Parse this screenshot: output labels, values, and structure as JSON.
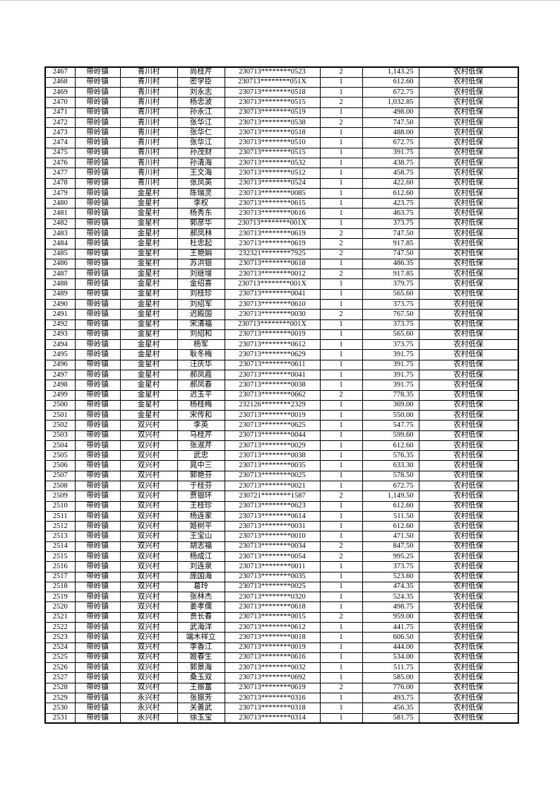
{
  "table": {
    "column_semantics": [
      "seq",
      "town",
      "village",
      "name",
      "id-number",
      "count",
      "amount",
      "category"
    ],
    "rows": [
      [
        "2467",
        "带岭镇",
        "青川村",
        "尚桂芹",
        "230713********0523",
        "2",
        "1,143.25",
        "农村低保"
      ],
      [
        "2468",
        "带岭镇",
        "青川村",
        "密学臣",
        "230713********051X",
        "1",
        "612.60",
        "农村低保"
      ],
      [
        "2469",
        "带岭镇",
        "青川村",
        "刘永志",
        "230713********0518",
        "1",
        "672.75",
        "农村低保"
      ],
      [
        "2470",
        "带岭镇",
        "青川村",
        "杨忠波",
        "230713********0515",
        "2",
        "1,032.85",
        "农村低保"
      ],
      [
        "2471",
        "带岭镇",
        "青川村",
        "孙永江",
        "230713********0519",
        "1",
        "498.00",
        "农村低保"
      ],
      [
        "2472",
        "带岭镇",
        "青川村",
        "张华江",
        "230713********0538",
        "2",
        "747.50",
        "农村低保"
      ],
      [
        "2473",
        "带岭镇",
        "青川村",
        "张华仁",
        "230713********0518",
        "1",
        "488.00",
        "农村低保"
      ],
      [
        "2474",
        "带岭镇",
        "青川村",
        "张华江",
        "230713********0510",
        "1",
        "672.75",
        "农村低保"
      ],
      [
        "2475",
        "带岭镇",
        "青川村",
        "孙茂财",
        "230713********0515",
        "1",
        "391.75",
        "农村低保"
      ],
      [
        "2476",
        "带岭镇",
        "青川村",
        "孙清海",
        "230713********0532",
        "1",
        "438.75",
        "农村低保"
      ],
      [
        "2477",
        "带岭镇",
        "青川村",
        "王文海",
        "230713********0512",
        "1",
        "458.75",
        "农村低保"
      ],
      [
        "2478",
        "带岭镇",
        "青川村",
        "张凤英",
        "230713********0524",
        "1",
        "422.60",
        "农村低保"
      ],
      [
        "2479",
        "带岭镇",
        "金星村",
        "陈瑞灵",
        "230713********0085",
        "1",
        "612.60",
        "农村低保"
      ],
      [
        "2480",
        "带岭镇",
        "金星村",
        "李权",
        "230713********0615",
        "1",
        "423.75",
        "农村低保"
      ],
      [
        "2481",
        "带岭镇",
        "金星村",
        "杨秀东",
        "230713********0616",
        "1",
        "463.75",
        "农村低保"
      ],
      [
        "2482",
        "带岭镇",
        "金星村",
        "郭彦华",
        "230713********001X",
        "1",
        "373.75",
        "农村低保"
      ],
      [
        "2483",
        "带岭镇",
        "金星村",
        "郝凤林",
        "230713********0619",
        "2",
        "747.50",
        "农村低保"
      ],
      [
        "2484",
        "带岭镇",
        "金星村",
        "杜忠起",
        "230713********0619",
        "2",
        "917.85",
        "农村低保"
      ],
      [
        "2485",
        "带岭镇",
        "金星村",
        "王艳娟",
        "232321********7925",
        "2",
        "747.50",
        "农村低保"
      ],
      [
        "2486",
        "带岭镇",
        "金星村",
        "苏洪银",
        "230713********0618",
        "1",
        "486.35",
        "农村低保"
      ],
      [
        "2487",
        "带岭镇",
        "金星村",
        "刘继增",
        "230713********0012",
        "2",
        "917.85",
        "农村低保"
      ],
      [
        "2488",
        "带岭镇",
        "金星村",
        "金绍喜",
        "230713********001X",
        "1",
        "379.75",
        "农村低保"
      ],
      [
        "2489",
        "带岭镇",
        "金星村",
        "刘桂珍",
        "230713********0041",
        "1",
        "565.60",
        "农村低保"
      ],
      [
        "2490",
        "带岭镇",
        "金星村",
        "刘绍军",
        "230713********0610",
        "1",
        "373.75",
        "农村低保"
      ],
      [
        "2491",
        "带岭镇",
        "金星村",
        "迟殿国",
        "230713********0030",
        "2",
        "767.50",
        "农村低保"
      ],
      [
        "2492",
        "带岭镇",
        "金星村",
        "宋清福",
        "230713********001X",
        "1",
        "373.75",
        "农村低保"
      ],
      [
        "2493",
        "带岭镇",
        "金星村",
        "刘绍和",
        "230713********0019",
        "1",
        "565.60",
        "农村低保"
      ],
      [
        "2494",
        "带岭镇",
        "金星村",
        "杨军",
        "230713********0612",
        "1",
        "373.75",
        "农村低保"
      ],
      [
        "2495",
        "带岭镇",
        "金星村",
        "耿冬梅",
        "230713********0629",
        "1",
        "391.75",
        "农村低保"
      ],
      [
        "2496",
        "带岭镇",
        "金星村",
        "汪庆华",
        "230713********0611",
        "1",
        "391.75",
        "农村低保"
      ],
      [
        "2497",
        "带岭镇",
        "金星村",
        "郝凤霞",
        "230713********0041",
        "1",
        "391.75",
        "农村低保"
      ],
      [
        "2498",
        "带岭镇",
        "金星村",
        "郝凤春",
        "230713********0038",
        "1",
        "391.75",
        "农村低保"
      ],
      [
        "2499",
        "带岭镇",
        "金星村",
        "迟玉平",
        "230713********0662",
        "2",
        "778.35",
        "农村低保"
      ],
      [
        "2500",
        "带岭镇",
        "金星村",
        "杨桂梅",
        "232126********2329",
        "1",
        "369.00",
        "农村低保"
      ],
      [
        "2501",
        "带岭镇",
        "金星村",
        "宋传和",
        "230713********0019",
        "1",
        "550.00",
        "农村低保"
      ],
      [
        "2502",
        "带岭镇",
        "双兴村",
        "李英",
        "230713********0625",
        "1",
        "547.75",
        "农村低保"
      ],
      [
        "2503",
        "带岭镇",
        "双兴村",
        "马桂芹",
        "230713********0044",
        "1",
        "599.60",
        "农村低保"
      ],
      [
        "2504",
        "带岭镇",
        "双兴村",
        "张淑芹",
        "230713********0029",
        "1",
        "612.60",
        "农村低保"
      ],
      [
        "2505",
        "带岭镇",
        "双兴村",
        "武忠",
        "230713********0038",
        "1",
        "576.35",
        "农村低保"
      ],
      [
        "2506",
        "带岭镇",
        "双兴村",
        "晁中三",
        "230713********0035",
        "1",
        "633.30",
        "农村低保"
      ],
      [
        "2507",
        "带岭镇",
        "双兴村",
        "郭艳芬",
        "230713********0025",
        "1",
        "578.50",
        "农村低保"
      ],
      [
        "2508",
        "带岭镇",
        "双兴村",
        "于桂芬",
        "230713********0021",
        "1",
        "672.75",
        "农村低保"
      ],
      [
        "2509",
        "带岭镇",
        "双兴村",
        "贾银环",
        "230721********1587",
        "2",
        "1,149.50",
        "农村低保"
      ],
      [
        "2510",
        "带岭镇",
        "双兴村",
        "王桂珍",
        "230713********0623",
        "1",
        "612.60",
        "农村低保"
      ],
      [
        "2511",
        "带岭镇",
        "双兴村",
        "杨连家",
        "230713********0614",
        "1",
        "511.50",
        "农村低保"
      ],
      [
        "2512",
        "带岭镇",
        "双兴村",
        "姬树平",
        "230713********0031",
        "1",
        "612.60",
        "农村低保"
      ],
      [
        "2513",
        "带岭镇",
        "双兴村",
        "王宝山",
        "230713********0010",
        "1",
        "471.50",
        "农村低保"
      ],
      [
        "2514",
        "带岭镇",
        "双兴村",
        "胡志福",
        "230713********0034",
        "2",
        "847.50",
        "农村低保"
      ],
      [
        "2515",
        "带岭镇",
        "双兴村",
        "杨成江",
        "230713********0054",
        "2",
        "995.25",
        "农村低保"
      ],
      [
        "2516",
        "带岭镇",
        "双兴村",
        "刘连泉",
        "230713********0011",
        "1",
        "373.75",
        "农村低保"
      ],
      [
        "2517",
        "带岭镇",
        "双兴村",
        "庞国海",
        "230713********0035",
        "1",
        "523.60",
        "农村低保"
      ],
      [
        "2518",
        "带岭镇",
        "双兴村",
        "葛玲",
        "230713********0025",
        "1",
        "474.35",
        "农村低保"
      ],
      [
        "2519",
        "带岭镇",
        "双兴村",
        "张林杰",
        "230713********0320",
        "1",
        "524.35",
        "农村低保"
      ],
      [
        "2520",
        "带岭镇",
        "双兴村",
        "姜孝儒",
        "230713********0618",
        "1",
        "498.75",
        "农村低保"
      ],
      [
        "2521",
        "带岭镇",
        "双兴村",
        "贾长春",
        "230713********0015",
        "2",
        "959.00",
        "农村低保"
      ],
      [
        "2522",
        "带岭镇",
        "双兴村",
        "武海洋",
        "230713********0612",
        "1",
        "441.75",
        "农村低保"
      ],
      [
        "2523",
        "带岭镇",
        "双兴村",
        "端木祥立",
        "230713********0018",
        "1",
        "606.50",
        "农村低保"
      ],
      [
        "2524",
        "带岭镇",
        "双兴村",
        "李香江",
        "230713********0019",
        "1",
        "444.00",
        "农村低保"
      ],
      [
        "2525",
        "带岭镇",
        "双兴村",
        "姬春生",
        "230713********0616",
        "1",
        "534.00",
        "农村低保"
      ],
      [
        "2526",
        "带岭镇",
        "双兴村",
        "郭景海",
        "230713********0032",
        "1",
        "511.75",
        "农村低保"
      ],
      [
        "2527",
        "带岭镇",
        "双兴村",
        "桑玉双",
        "230713********0692",
        "1",
        "585.00",
        "农村低保"
      ],
      [
        "2528",
        "带岭镇",
        "双兴村",
        "王振富",
        "230713********0619",
        "2",
        "776.00",
        "农村低保"
      ],
      [
        "2529",
        "带岭镇",
        "永兴村",
        "张振芳",
        "230713********0316",
        "1",
        "493.75",
        "农村低保"
      ],
      [
        "2530",
        "带岭镇",
        "永兴村",
        "关善武",
        "230713********0318",
        "1",
        "456.35",
        "农村低保"
      ],
      [
        "2531",
        "带岭镇",
        "永兴村",
        "徐玉宝",
        "230713********0314",
        "1",
        "581.75",
        "农村低保"
      ]
    ]
  }
}
